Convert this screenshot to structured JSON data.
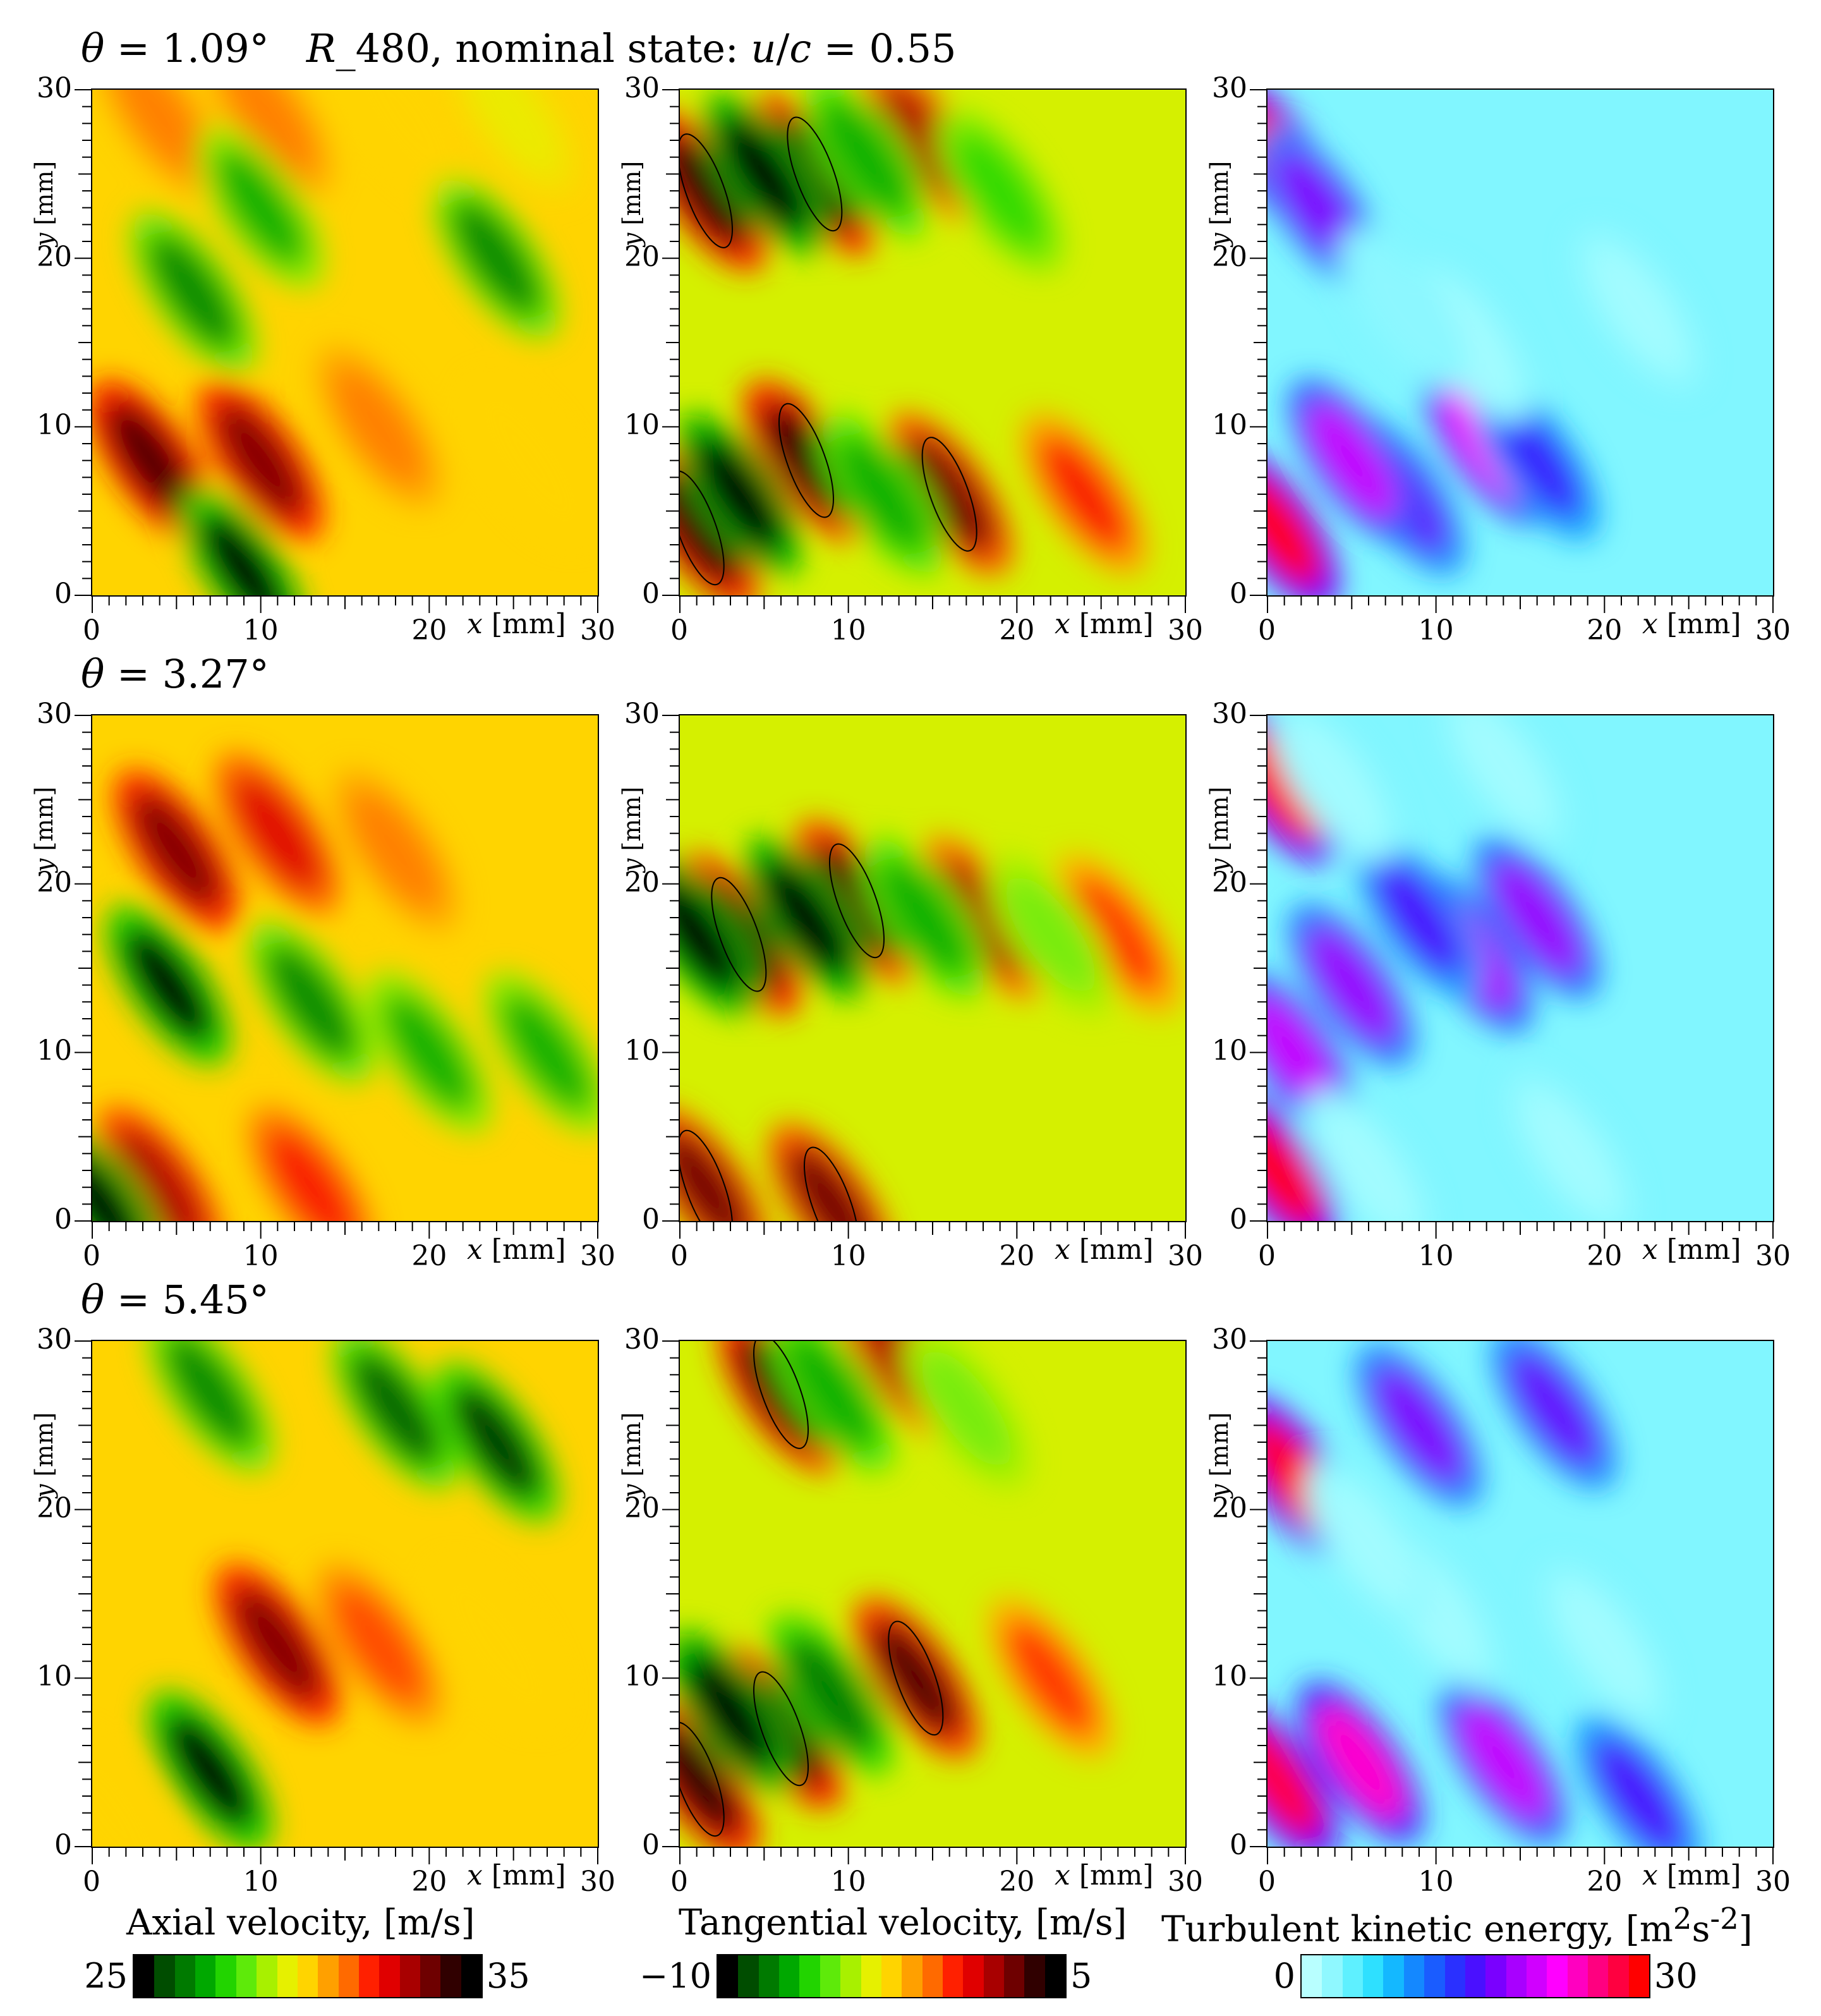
{
  "header": {
    "row1_theta_sym": "θ",
    "row1_theta_val": " = 1.09°",
    "row1_case": "R",
    "row1_case_rest": "_480, nominal state: ",
    "row1_u": "u",
    "row1_slash": "/",
    "row1_c": "c",
    "row1_ratio": " = 0.55",
    "row2_theta_sym": "θ",
    "row2_theta_val": " = 3.27°",
    "row3_theta_sym": "θ",
    "row3_theta_val": " = 5.45°"
  },
  "axes": {
    "x_var": "x",
    "x_unit": " [mm]",
    "y_var": "y",
    "y_unit": " [mm]",
    "ticks": [
      "0",
      "10",
      "20",
      "30"
    ],
    "x_ticks_shown": [
      "0",
      "10",
      "20",
      "30"
    ]
  },
  "colorbars": [
    {
      "title": "Axial velocity, [m/s]",
      "min": "25",
      "max": "35",
      "colors": [
        "#000000",
        "#004d00",
        "#007a00",
        "#00a800",
        "#22d400",
        "#5eea0a",
        "#a8f000",
        "#e6f000",
        "#ffd400",
        "#ffa000",
        "#ff6a00",
        "#ff2000",
        "#e00000",
        "#a80000",
        "#6e0000",
        "#300000",
        "#000000"
      ]
    },
    {
      "title": "Tangential velocity, [m/s]",
      "min": "−10",
      "max": "5",
      "colors": [
        "#000000",
        "#004d00",
        "#007a00",
        "#00a800",
        "#22d400",
        "#5eea0a",
        "#a8f000",
        "#e6f000",
        "#ffd400",
        "#ffa000",
        "#ff6a00",
        "#ff2000",
        "#e00000",
        "#a80000",
        "#6e0000",
        "#300000",
        "#000000"
      ]
    },
    {
      "title": "Turbulent kinetic energy, [m",
      "title_sup1": "2",
      "title_mid": "s",
      "title_sup2": "-2",
      "title_end": "]",
      "min": "0",
      "max": "30",
      "colors": [
        "#b8ffff",
        "#8ff8ff",
        "#5ef0ff",
        "#2ee0ff",
        "#14b8ff",
        "#1488ff",
        "#1a5cff",
        "#2a30ff",
        "#4a10ff",
        "#7a00ff",
        "#a800ff",
        "#d000ff",
        "#ff00ff",
        "#ff00c0",
        "#ff0080",
        "#ff0040",
        "#ff0000"
      ]
    }
  ],
  "chart_data": [
    {
      "type": "heatmap",
      "row": 1,
      "title": "θ = 1.09°  R_480, nominal state: u/c = 0.55",
      "variable": "Axial velocity",
      "unit": "m/s",
      "xlabel": "x [mm]",
      "ylabel": "y [mm]",
      "xlim": [
        0,
        30
      ],
      "ylim": [
        0,
        30
      ],
      "clim": [
        25,
        35
      ],
      "blobs": [
        {
          "x": 3.5,
          "y": 8,
          "value": 34
        },
        {
          "x": 10,
          "y": 8,
          "value": 33.5
        },
        {
          "x": 17,
          "y": 10,
          "value": 31
        },
        {
          "x": 26,
          "y": 8,
          "value": 30
        },
        {
          "x": 4,
          "y": 28.5,
          "value": 31
        },
        {
          "x": 10.5,
          "y": 28.5,
          "value": 31
        },
        {
          "x": 18.5,
          "y": 28.5,
          "value": 30
        },
        {
          "x": 25,
          "y": 28.5,
          "value": 29.5
        },
        {
          "x": 9,
          "y": 1.5,
          "value": 25
        },
        {
          "x": 6,
          "y": 18,
          "value": 26.5
        },
        {
          "x": 24,
          "y": 20,
          "value": 26.5
        },
        {
          "x": 10,
          "y": 23,
          "value": 27
        }
      ]
    },
    {
      "type": "heatmap",
      "row": 1,
      "variable": "Tangential velocity",
      "unit": "m/s",
      "xlabel": "x [mm]",
      "ylabel": "y [mm]",
      "xlim": [
        0,
        30
      ],
      "ylim": [
        0,
        30
      ],
      "clim": [
        -10,
        5
      ],
      "blobs": [
        {
          "x": 1,
          "y": 4,
          "value": 4
        },
        {
          "x": 7.5,
          "y": 8,
          "value": 4
        },
        {
          "x": 16,
          "y": 6,
          "value": 3
        },
        {
          "x": 24,
          "y": 6,
          "value": 0.5
        },
        {
          "x": 1.5,
          "y": 24,
          "value": 4
        },
        {
          "x": 8,
          "y": 25,
          "value": 4
        },
        {
          "x": 14.5,
          "y": 27,
          "value": 2
        },
        {
          "x": 3.5,
          "y": 6,
          "value": -10
        },
        {
          "x": 5,
          "y": 25,
          "value": -10
        },
        {
          "x": 12,
          "y": 6,
          "value": -7
        },
        {
          "x": 11,
          "y": 26,
          "value": -7
        },
        {
          "x": 19,
          "y": 24,
          "value": -6
        }
      ]
    },
    {
      "type": "heatmap",
      "row": 1,
      "variable": "Turbulent kinetic energy",
      "unit": "m²s⁻²",
      "xlabel": "x [mm]",
      "ylabel": "y [mm]",
      "xlim": [
        0,
        30
      ],
      "ylim": [
        0,
        30
      ],
      "clim": [
        0,
        30
      ],
      "blobs": [
        {
          "x": 0.5,
          "y": 26,
          "value": 30
        },
        {
          "x": 0.5,
          "y": 4,
          "value": 30
        },
        {
          "x": 13,
          "y": 9,
          "value": 22
        },
        {
          "x": 8,
          "y": 6,
          "value": 16
        },
        {
          "x": 3,
          "y": 23,
          "value": 17
        },
        {
          "x": 5,
          "y": 8,
          "value": 20
        },
        {
          "x": 16,
          "y": 8,
          "value": 14
        },
        {
          "x": 12,
          "y": 15,
          "value": 1
        },
        {
          "x": 22,
          "y": 17,
          "value": 1
        },
        {
          "x": 8,
          "y": 17,
          "value": 2
        }
      ]
    },
    {
      "type": "heatmap",
      "row": 2,
      "title": "θ = 3.27°",
      "variable": "Axial velocity",
      "unit": "m/s",
      "xlabel": "x [mm]",
      "ylabel": "y [mm]",
      "xlim": [
        0,
        30
      ],
      "ylim": [
        0,
        30
      ],
      "clim": [
        25,
        35
      ],
      "blobs": [
        {
          "x": 5,
          "y": 22,
          "value": 33.5
        },
        {
          "x": 11,
          "y": 23,
          "value": 32.5
        },
        {
          "x": 18,
          "y": 22,
          "value": 31
        },
        {
          "x": 4,
          "y": 2,
          "value": 33
        },
        {
          "x": 13,
          "y": 2,
          "value": 32
        },
        {
          "x": 0.5,
          "y": 1,
          "value": 25
        },
        {
          "x": 4.5,
          "y": 14,
          "value": 25
        },
        {
          "x": 13,
          "y": 13,
          "value": 26.5
        },
        {
          "x": 20,
          "y": 10,
          "value": 27
        },
        {
          "x": 27,
          "y": 10,
          "value": 27
        }
      ]
    },
    {
      "type": "heatmap",
      "row": 2,
      "variable": "Tangential velocity",
      "unit": "m/s",
      "xlabel": "x [mm]",
      "ylabel": "y [mm]",
      "xlim": [
        0,
        30
      ],
      "ylim": [
        0,
        30
      ],
      "clim": [
        -10,
        5
      ],
      "blobs": [
        {
          "x": 3.5,
          "y": 17,
          "value": 4
        },
        {
          "x": 10.5,
          "y": 19,
          "value": 3.5
        },
        {
          "x": 18,
          "y": 18,
          "value": 2
        },
        {
          "x": 26,
          "y": 17,
          "value": 0
        },
        {
          "x": 1.5,
          "y": 2,
          "value": 3
        },
        {
          "x": 9,
          "y": 1,
          "value": 3
        },
        {
          "x": 1,
          "y": 17,
          "value": -10
        },
        {
          "x": 7.5,
          "y": 18,
          "value": -10
        },
        {
          "x": 14.5,
          "y": 18,
          "value": -7
        },
        {
          "x": 22,
          "y": 17,
          "value": -5
        }
      ]
    },
    {
      "type": "heatmap",
      "row": 2,
      "variable": "Turbulent kinetic energy",
      "unit": "m²s⁻²",
      "xlabel": "x [mm]",
      "ylabel": "y [mm]",
      "xlim": [
        0,
        30
      ],
      "ylim": [
        0,
        30
      ],
      "clim": [
        0,
        30
      ],
      "blobs": [
        {
          "x": 0.5,
          "y": 26,
          "value": 30
        },
        {
          "x": 0.5,
          "y": 3,
          "value": 30
        },
        {
          "x": 1.5,
          "y": 10,
          "value": 20
        },
        {
          "x": 5,
          "y": 14,
          "value": 18
        },
        {
          "x": 12,
          "y": 16,
          "value": 19
        },
        {
          "x": 16,
          "y": 18,
          "value": 18
        },
        {
          "x": 9,
          "y": 18,
          "value": 15
        },
        {
          "x": 4,
          "y": 26,
          "value": 1
        },
        {
          "x": 14,
          "y": 27,
          "value": 1
        },
        {
          "x": 18,
          "y": 4,
          "value": 1
        },
        {
          "x": 6,
          "y": 3,
          "value": 1
        }
      ]
    },
    {
      "type": "heatmap",
      "row": 3,
      "title": "θ = 5.45°",
      "variable": "Axial velocity",
      "unit": "m/s",
      "xlabel": "x [mm]",
      "ylabel": "y [mm]",
      "xlim": [
        0,
        30
      ],
      "ylim": [
        0,
        30
      ],
      "clim": [
        25,
        35
      ],
      "blobs": [
        {
          "x": 11,
          "y": 12,
          "value": 33.5
        },
        {
          "x": 17,
          "y": 12,
          "value": 31.5
        },
        {
          "x": 24,
          "y": 12,
          "value": 30
        },
        {
          "x": 7,
          "y": 4.5,
          "value": 25
        },
        {
          "x": 18,
          "y": 26,
          "value": 26
        },
        {
          "x": 24,
          "y": 24,
          "value": 25.5
        },
        {
          "x": 7,
          "y": 27,
          "value": 26.5
        },
        {
          "x": 1,
          "y": 2,
          "value": 30
        }
      ]
    },
    {
      "type": "heatmap",
      "row": 3,
      "variable": "Tangential velocity",
      "unit": "m/s",
      "xlabel": "x [mm]",
      "ylabel": "y [mm]",
      "xlim": [
        0,
        30
      ],
      "ylim": [
        0,
        30
      ],
      "clim": [
        -10,
        5
      ],
      "blobs": [
        {
          "x": 6,
          "y": 7,
          "value": 4
        },
        {
          "x": 14,
          "y": 10,
          "value": 3.5
        },
        {
          "x": 1,
          "y": 4,
          "value": 4
        },
        {
          "x": 6,
          "y": 27,
          "value": 4
        },
        {
          "x": 13,
          "y": 29,
          "value": 2
        },
        {
          "x": 22,
          "y": 10,
          "value": 0
        },
        {
          "x": 3,
          "y": 8,
          "value": -10
        },
        {
          "x": 9,
          "y": 9,
          "value": -8
        },
        {
          "x": 9,
          "y": 27,
          "value": -7
        },
        {
          "x": 17,
          "y": 26,
          "value": -5
        }
      ]
    },
    {
      "type": "heatmap",
      "row": 3,
      "variable": "Turbulent kinetic energy",
      "unit": "m²s⁻²",
      "xlabel": "x [mm]",
      "ylabel": "y [mm]",
      "xlim": [
        0,
        30
      ],
      "ylim": [
        0,
        30
      ],
      "clim": [
        0,
        30
      ],
      "blobs": [
        {
          "x": 1.5,
          "y": 22,
          "value": 29
        },
        {
          "x": 0.5,
          "y": 4,
          "value": 28
        },
        {
          "x": 5.5,
          "y": 5,
          "value": 24
        },
        {
          "x": 14,
          "y": 5,
          "value": 20
        },
        {
          "x": 9,
          "y": 25,
          "value": 17
        },
        {
          "x": 17,
          "y": 26,
          "value": 16
        },
        {
          "x": 22,
          "y": 3,
          "value": 15
        },
        {
          "x": 10,
          "y": 14,
          "value": 1
        },
        {
          "x": 20,
          "y": 12,
          "value": 1
        },
        {
          "x": 6,
          "y": 18,
          "value": 1
        }
      ]
    }
  ]
}
